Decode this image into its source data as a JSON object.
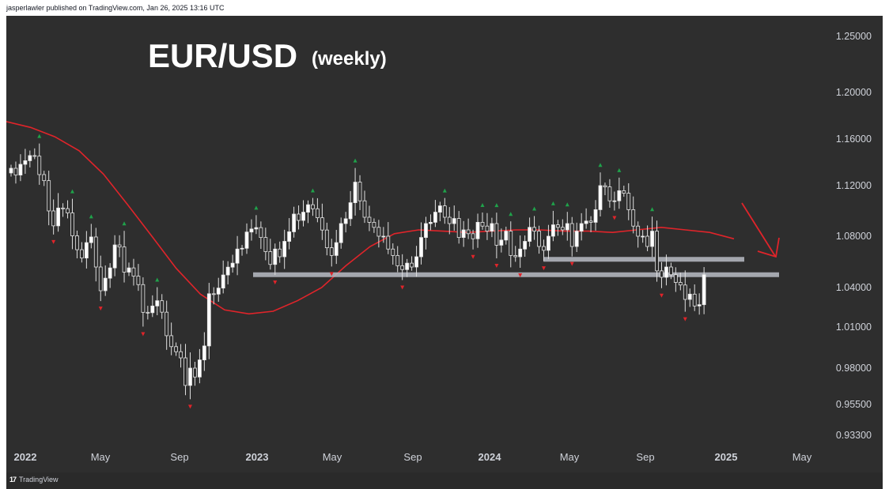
{
  "header": {
    "published_text": "jasperlawler published on TradingView.com, Jan 26, 2025 13:16 UTC"
  },
  "footer": {
    "brand": "TradingView",
    "logo_mark": "17"
  },
  "chart_data": {
    "type": "candlestick",
    "title": "EUR/USD",
    "subtitle": "(weekly)",
    "background": "#2e2e2e",
    "colors": {
      "up": "#ffffff",
      "down": "#2e2e2e",
      "wick": "#e0e0e0",
      "ma_line": "#e0242a",
      "fractal_up": "#1fa24a",
      "fractal_down": "#e0242a",
      "level": "#b9bcc4",
      "arrow": "#e0242a"
    },
    "y_axis": {
      "scale": "linear",
      "ticks": [
        "1.25000",
        "1.20000",
        "1.16000",
        "1.12000",
        "1.08000",
        "1.04000",
        "1.01000",
        "0.98000",
        "0.95500",
        "0.93300"
      ]
    },
    "x_axis": {
      "ticks": [
        "2022",
        "May",
        "Sep",
        "2023",
        "May",
        "Sep",
        "2024",
        "May",
        "Sep",
        "2025",
        "May"
      ],
      "bold_ticks": [
        "2022",
        "2023",
        "2024",
        "2025"
      ]
    },
    "grid": false,
    "close": [
      1.1349,
      1.1291,
      1.1383,
      1.1414,
      1.1458,
      1.1453,
      1.1295,
      1.1243,
      1.1,
      1.0882,
      1.1023,
      1.1018,
      1.0984,
      1.0803,
      1.0695,
      1.063,
      1.075,
      1.0794,
      1.056,
      1.0376,
      1.0473,
      1.0553,
      1.0732,
      1.0716,
      1.052,
      1.0553,
      1.0489,
      1.0423,
      1.0212,
      1.0209,
      1.026,
      1.03,
      1.0213,
      1.0037,
      0.9957,
      0.992,
      0.9875,
      0.9681,
      0.98,
      0.9739,
      0.986,
      0.9962,
      1.0353,
      1.035,
      1.0396,
      1.0498,
      1.0559,
      1.059,
      1.07,
      1.0706,
      1.0833,
      1.0857,
      1.0868,
      1.079,
      1.068,
      1.058,
      1.07,
      1.064,
      1.076,
      1.0835,
      1.0975,
      1.0925,
      1.099,
      1.1049,
      1.1017,
      1.0946,
      1.0849,
      1.071,
      1.065,
      1.075,
      1.09,
      1.0938,
      1.1065,
      1.123,
      1.108,
      1.095,
      1.091,
      1.087,
      1.08,
      1.08,
      1.07,
      1.065,
      1.057,
      1.054,
      1.059,
      1.056,
      1.064,
      1.079,
      1.09,
      1.091,
      1.099,
      1.104,
      1.095,
      1.09,
      1.094,
      1.079,
      1.085,
      1.082,
      1.078,
      1.091,
      1.088,
      1.084,
      1.09,
      1.073,
      1.077,
      1.084,
      1.065,
      1.064,
      1.07,
      1.076,
      1.087,
      1.084,
      1.072,
      1.069,
      1.08,
      1.089,
      1.087,
      1.085,
      1.09,
      1.072,
      1.084,
      1.09,
      1.092,
      1.091,
      1.101,
      1.12,
      1.119,
      1.108,
      1.108,
      1.116,
      1.114,
      1.101,
      1.088,
      1.08,
      1.08,
      1.072,
      1.084,
      1.053,
      1.048,
      1.056,
      1.05,
      1.044,
      1.042,
      1.031,
      1.035,
      1.026,
      1.027,
      1.05
    ],
    "ma_50_week": [
      1.175,
      1.17,
      1.162,
      1.15,
      1.13,
      1.105,
      1.08,
      1.055,
      1.035,
      1.023,
      1.02,
      1.022,
      1.03,
      1.04,
      1.057,
      1.072,
      1.082,
      1.085,
      1.084,
      1.083,
      1.084,
      1.085,
      1.085,
      1.084,
      1.084,
      1.083,
      1.085,
      1.087,
      1.085,
      1.083,
      1.078
    ],
    "levels": [
      1.05,
      1.062
    ],
    "fractals_up_count": 36,
    "fractals_down_count": 37
  }
}
